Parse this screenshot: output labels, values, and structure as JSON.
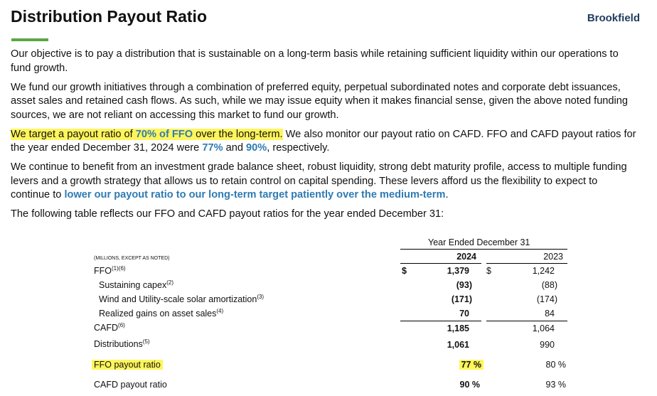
{
  "header": {
    "title": "Distribution Payout Ratio",
    "brand": "Brookfield"
  },
  "paragraphs": {
    "p1": "Our objective is to pay a distribution that is sustainable on a long-term basis while retaining sufficient liquidity within our operations to fund growth.",
    "p2": "We fund our growth initiatives through a combination of preferred equity, perpetual subordinated notes and corporate debt issuances, asset sales and retained cash flows. As such, while we may issue equity when it makes financial sense, given the above noted funding sources, we are not reliant on accessing this market to fund our growth.",
    "p3_a": "We target a payout ratio of ",
    "p3_b": "70% of FFO",
    "p3_c": " over the long-term.",
    "p3_d": " We also monitor our payout ratio on CAFD. FFO and CAFD payout ratios for the year ended December 31, 2024 were ",
    "p3_e": "77%",
    "p3_f": " and ",
    "p3_g": "90%",
    "p3_h": ", respectively.",
    "p4_a": "We continue to benefit from an investment grade balance sheet, robust liquidity, strong debt maturity profile, access to multiple funding levers and a growth strategy that allows us to retain control on capital spending. These levers afford us the flexibility to expect to continue to ",
    "p4_b": "lower our payout ratio to our long-term target patiently over the medium-term",
    "p4_c": ".",
    "p5": "The following table reflects our FFO and CAFD payout ratios for the year ended December 31:"
  },
  "table": {
    "period_header": "Year Ended December 31",
    "col_2024": "2024",
    "col_2023": "2023",
    "units_note": "(MILLIONS, EXCEPT AS NOTED)",
    "currency": "$",
    "rows": [
      {
        "label": "FFO",
        "sup": "(1)(6)",
        "v2024": "1,379",
        "v2023": "1,242"
      },
      {
        "label": "Sustaining capex",
        "sup": "(2)",
        "v2024": "(93)",
        "v2023": "(88)"
      },
      {
        "label": "Wind and Utility-scale solar amortization",
        "sup": "(3)",
        "v2024": "(171)",
        "v2023": "(174)"
      },
      {
        "label": "Realized gains on asset sales",
        "sup": "(4)",
        "v2024": "70",
        "v2023": "84"
      },
      {
        "label": "CAFD",
        "sup": "(6)",
        "v2024": "1,185",
        "v2023": "1,064"
      },
      {
        "label": "Distributions",
        "sup": "(5)",
        "v2024": "1,061",
        "v2023": "990"
      },
      {
        "label": "FFO payout ratio",
        "sup": "",
        "v2024": "77 %",
        "v2023": "80 %"
      },
      {
        "label": "CAFD payout ratio",
        "sup": "",
        "v2024": "90 %",
        "v2023": "93 %"
      }
    ]
  },
  "colors": {
    "highlight": "#fff55a",
    "accent_blue": "#2e7bb3",
    "rule_green": "#5aa646",
    "brand_navy": "#1f3a5f"
  }
}
